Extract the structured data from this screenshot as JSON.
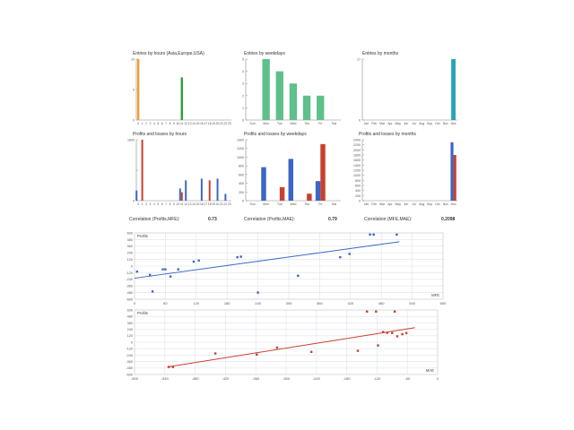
{
  "colors": {
    "orange": "#f0a030",
    "green_dark": "#2e9e3a",
    "green_light": "#7fd1a0",
    "teal": "#2aa3b6",
    "blue": "#3a66c4",
    "red": "#c84030",
    "grid": "#dde3ea",
    "axis": "#888888"
  },
  "chart_data": [
    {
      "id": "entries_hours",
      "type": "bar",
      "title": "Entries by hours (Asia,Europe,USA)",
      "categories": [
        "0",
        "1",
        "2",
        "3",
        "4",
        "5",
        "6",
        "7",
        "8",
        "9",
        "10",
        "11",
        "12",
        "13",
        "14",
        "15",
        "16",
        "17",
        "18",
        "19",
        "20",
        "21",
        "22",
        "23"
      ],
      "yticks": [
        "0",
        "5",
        "10"
      ],
      "ylim": [
        0,
        10
      ],
      "series": [
        {
          "values": [
            10,
            0,
            0,
            0,
            0,
            0,
            0,
            0,
            0,
            0,
            0,
            0,
            0,
            0,
            0,
            0,
            0,
            0,
            0,
            0,
            0,
            0,
            0,
            0
          ],
          "color": "#f0a030"
        },
        {
          "values": [
            0,
            0,
            0,
            0,
            0,
            0,
            0,
            0,
            0,
            0,
            0,
            7,
            0,
            0,
            0,
            0,
            0,
            0,
            0,
            0,
            0,
            0,
            0,
            0
          ],
          "color": "#2e9e3a"
        }
      ]
    },
    {
      "id": "entries_weekdays",
      "type": "bar",
      "title": "Entries by weekdays",
      "categories": [
        "Sun",
        "Mon",
        "Tue",
        "Wed",
        "Thu",
        "Fri",
        "Sat"
      ],
      "yticks": [
        "0",
        "1",
        "2",
        "3",
        "4",
        "5"
      ],
      "ylim": [
        0,
        5
      ],
      "series": [
        {
          "values": [
            0,
            5,
            4,
            3,
            2,
            2,
            0
          ],
          "color": "#5ec08a"
        }
      ]
    },
    {
      "id": "entries_months",
      "type": "bar",
      "title": "Entries by months",
      "categories": [
        "Jan",
        "Feb",
        "Mar",
        "Apr",
        "May",
        "Jun",
        "Jul",
        "Aug",
        "Sep",
        "Oct",
        "Nov",
        "Dec"
      ],
      "yticks": [
        "0",
        "17"
      ],
      "ylim": [
        0,
        17
      ],
      "series": [
        {
          "values": [
            0,
            0,
            0,
            0,
            0,
            0,
            0,
            0,
            0,
            0,
            0,
            17
          ],
          "color": "#2aa3b6"
        }
      ]
    },
    {
      "id": "pl_hours",
      "type": "bar",
      "title": "Profits and losses by hours",
      "categories": [
        "0",
        "1",
        "2",
        "3",
        "4",
        "5",
        "6",
        "7",
        "8",
        "9",
        "10",
        "11",
        "12",
        "13",
        "14",
        "15",
        "16",
        "17",
        "18",
        "19",
        "20",
        "21",
        "22",
        "23"
      ],
      "yticks": [
        "0",
        "",
        "1800"
      ],
      "ylim": [
        0,
        1800
      ],
      "series": [
        {
          "values": [
            300,
            0,
            0,
            0,
            0,
            0,
            0,
            0,
            0,
            0,
            0,
            360,
            0,
            0,
            0,
            0,
            0,
            0,
            0,
            0,
            0,
            0,
            0,
            0
          ],
          "color": "#3a66c4",
          "offset": -1
        },
        {
          "values": [
            0,
            1800,
            0,
            0,
            0,
            0,
            0,
            0,
            0,
            0,
            0,
            0,
            0,
            0,
            0,
            0,
            0,
            0,
            0,
            0,
            0,
            0,
            0,
            0
          ],
          "color": "#c84030",
          "offset": 0
        },
        {
          "values": [
            0,
            0,
            0,
            0,
            0,
            0,
            0,
            0,
            0,
            0,
            0,
            0,
            600,
            0,
            0,
            0,
            650,
            0,
            0,
            0,
            650,
            0,
            200,
            0
          ],
          "color": "#3a66c4",
          "offset": 0
        },
        {
          "values": [
            0,
            0,
            0,
            0,
            0,
            0,
            0,
            0,
            0,
            0,
            0,
            250,
            0,
            0,
            0,
            0,
            0,
            0,
            600,
            0,
            0,
            0,
            0,
            0
          ],
          "color": "#c84030",
          "offset": 0
        }
      ]
    },
    {
      "id": "pl_weekdays",
      "type": "bar",
      "title": "Profits and losses by weekdays",
      "categories": [
        "Sun",
        "Mon",
        "Tue",
        "Wed",
        "Thu",
        "Fri",
        "Sat"
      ],
      "yticks": [
        "0",
        "200",
        "400",
        "600",
        "800",
        "1000",
        "1200",
        "1400"
      ],
      "ylim": [
        0,
        1400
      ],
      "series": [
        {
          "name": "profit",
          "values": [
            0,
            770,
            0,
            960,
            0,
            450,
            0
          ],
          "color": "#3a66c4"
        },
        {
          "name": "loss",
          "values": [
            0,
            0,
            310,
            0,
            160,
            1300,
            0
          ],
          "color": "#c84030"
        }
      ]
    },
    {
      "id": "pl_months",
      "type": "bar",
      "title": "Profits and losses by months",
      "categories": [
        "Jan",
        "Feb",
        "Mar",
        "Apr",
        "May",
        "Jun",
        "Jul",
        "Aug",
        "Sep",
        "Oct",
        "Nov",
        "Dec"
      ],
      "yticks": [
        "0",
        "200",
        "400",
        "600",
        "800",
        "1000",
        "1200",
        "1400",
        "1600",
        "1800",
        "2000",
        "2200",
        "2400"
      ],
      "ylim": [
        0,
        2400
      ],
      "series": [
        {
          "name": "profit",
          "values": [
            0,
            0,
            0,
            0,
            0,
            0,
            0,
            0,
            0,
            0,
            0,
            2300
          ],
          "color": "#3a66c4"
        },
        {
          "name": "loss",
          "values": [
            0,
            0,
            0,
            0,
            0,
            0,
            0,
            0,
            0,
            0,
            0,
            1800
          ],
          "color": "#c84030"
        }
      ]
    },
    {
      "id": "scatter_mfe",
      "type": "scatter",
      "ylabel": "Profits",
      "xlabel": "MFE",
      "xticks": [
        0,
        60,
        120,
        180,
        240,
        300,
        360,
        420,
        480,
        540,
        600
      ],
      "yticks": [
        600,
        480,
        360,
        240,
        120,
        0,
        -120,
        -240,
        -360,
        -480,
        -600
      ],
      "xlim": [
        0,
        600
      ],
      "ylim": [
        -600,
        600
      ],
      "color": "#3a66c4",
      "points": [
        [
          5,
          -100
        ],
        [
          30,
          -160
        ],
        [
          35,
          -460
        ],
        [
          60,
          -60
        ],
        [
          85,
          -60
        ],
        [
          70,
          -190
        ],
        [
          55,
          -60
        ],
        [
          115,
          80
        ],
        [
          125,
          100
        ],
        [
          200,
          160
        ],
        [
          207,
          170
        ],
        [
          240,
          -480
        ],
        [
          318,
          -175
        ],
        [
          400,
          160
        ],
        [
          418,
          220
        ],
        [
          458,
          570
        ],
        [
          465,
          570
        ],
        [
          510,
          570
        ]
      ],
      "trend": [
        [
          0,
          -220
        ],
        [
          515,
          440
        ]
      ]
    },
    {
      "id": "scatter_mae",
      "type": "scatter",
      "ylabel": "Profits",
      "xlabel": "MAE",
      "xticks": [
        -600,
        -540,
        -480,
        -420,
        -360,
        -300,
        -240,
        -180,
        -120,
        -60,
        0
      ],
      "yticks": [
        600,
        480,
        360,
        240,
        120,
        0,
        -120,
        -240,
        -360,
        -480,
        -600
      ],
      "xlim": [
        -600,
        0
      ],
      "ylim": [
        -600,
        600
      ],
      "color": "#c84030",
      "points": [
        [
          -532,
          -460
        ],
        [
          -524,
          -460
        ],
        [
          -440,
          -210
        ],
        [
          -358,
          -230
        ],
        [
          -318,
          -100
        ],
        [
          -250,
          -180
        ],
        [
          -158,
          -160
        ],
        [
          -140,
          570
        ],
        [
          -122,
          570
        ],
        [
          -118,
          -60
        ],
        [
          -108,
          190
        ],
        [
          -100,
          175
        ],
        [
          -90,
          170
        ],
        [
          -85,
          570
        ],
        [
          -80,
          110
        ],
        [
          -70,
          150
        ],
        [
          -62,
          170
        ]
      ],
      "trend": [
        [
          -535,
          -460
        ],
        [
          -45,
          270
        ]
      ]
    }
  ],
  "correlations": [
    {
      "label": "Correlation (Profits,MFE):",
      "value": "0.73"
    },
    {
      "label": "Correlation (Profits,MAE):",
      "value": "0.79"
    },
    {
      "label": "Correlation (MFE,MAE):",
      "value": "0.2098"
    }
  ]
}
